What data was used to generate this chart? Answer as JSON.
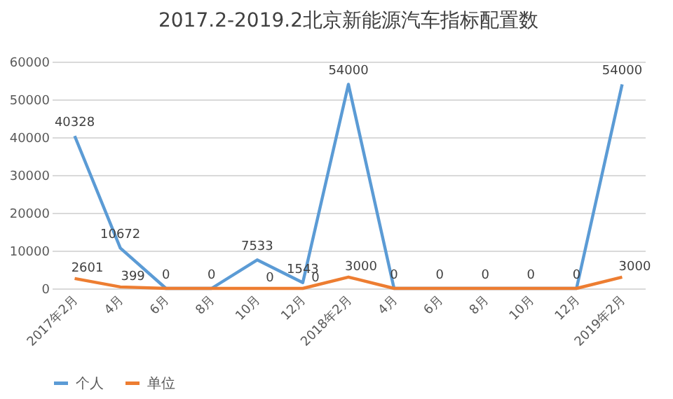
{
  "chart_data": {
    "type": "line",
    "title": "2017.2-2019.2北京新能源汽车指标配置数",
    "categories": [
      "2017年2月",
      "4月",
      "6月",
      "8月",
      "10月",
      "12月",
      "2018年2月",
      "4月",
      "6月",
      "8月",
      "10月",
      "12月",
      "2019年2月"
    ],
    "series": [
      {
        "name": "个人",
        "color": "#5b9bd5",
        "values": [
          40328,
          10672,
          0,
          0,
          7533,
          1543,
          54000,
          0,
          0,
          0,
          0,
          0,
          54000
        ],
        "value_labels": [
          "40328",
          "10672",
          "0",
          "0",
          "7533",
          "1543",
          "54000",
          "0",
          "0",
          "0",
          "0",
          "0",
          "54000"
        ]
      },
      {
        "name": "单位",
        "color": "#ed7d31",
        "values": [
          2601,
          399,
          0,
          0,
          0,
          0,
          3000,
          0,
          0,
          0,
          0,
          0,
          3000
        ],
        "value_labels": [
          "2601",
          "399",
          null,
          null,
          "0",
          "0",
          "3000",
          null,
          null,
          null,
          null,
          null,
          "3000"
        ]
      }
    ],
    "ylim": [
      0,
      60000
    ],
    "yticks": [
      0,
      10000,
      20000,
      30000,
      40000,
      50000,
      60000
    ],
    "grid": "y",
    "legend": "bottom",
    "marker": "none",
    "line_style": "solid"
  }
}
